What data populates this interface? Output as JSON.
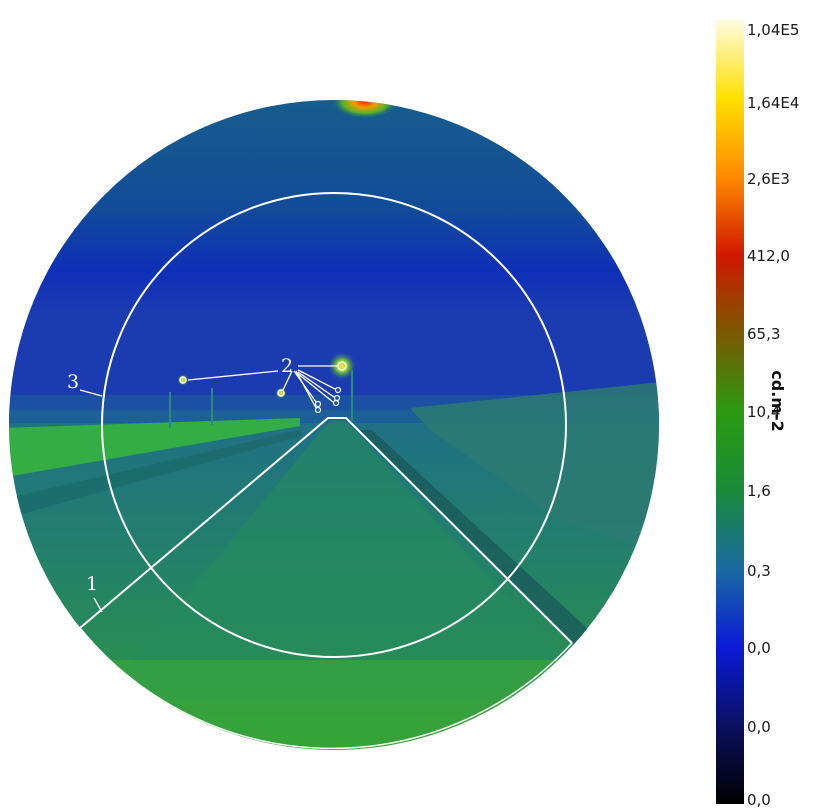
{
  "figure": {
    "annotations": {
      "road_area": "1",
      "light_sources": "2",
      "field_of_view": "3"
    },
    "colorbar": {
      "unit": "cd.m-2",
      "tick_labels": [
        "1,04E5",
        "1,64E4",
        "2,6E3",
        "412,0",
        "65,3",
        "10,4",
        "1,6",
        "0,3",
        "0,0",
        "0,0",
        "0,0"
      ],
      "colors_top_to_bottom": [
        "#fffbe0",
        "#ffe000",
        "#ff8a00",
        "#d01800",
        "#7a5a00",
        "#2a9a10",
        "#1a8a3a",
        "#1a6aa0",
        "#0a1ad8",
        "#0a1060",
        "#000000"
      ]
    }
  }
}
